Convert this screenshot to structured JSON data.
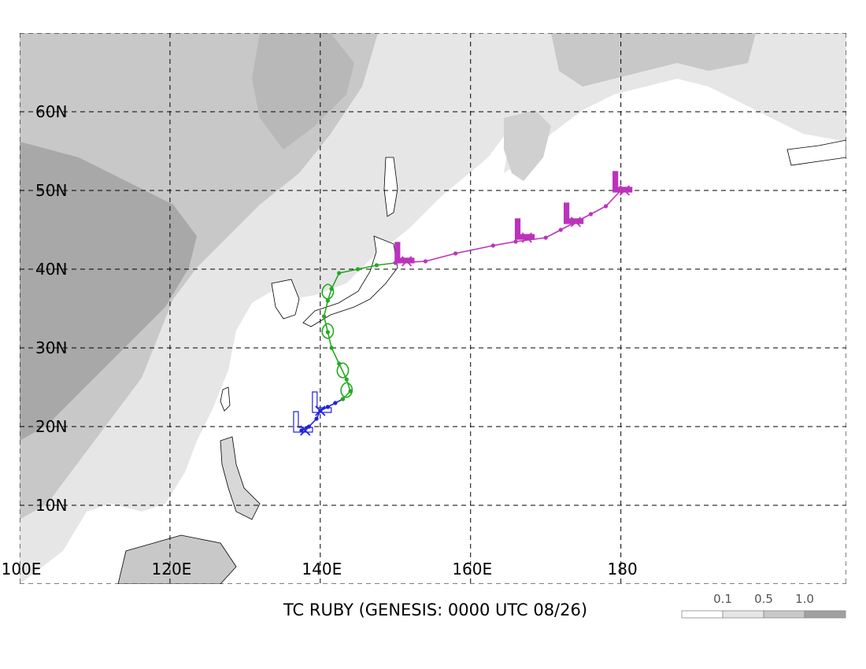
{
  "title": "TC RUBY (GENESIS: 0000 UTC 08/26)",
  "map": {
    "lon_min": 100,
    "lon_max": 210,
    "lat_min": 0,
    "lat_max": 70,
    "gridlines": true,
    "lon_labels": [
      {
        "lon": 100,
        "text": "100E"
      },
      {
        "lon": 120,
        "text": "120E"
      },
      {
        "lon": 140,
        "text": "140E"
      },
      {
        "lon": 160,
        "text": "160E"
      },
      {
        "lon": 180,
        "text": "180"
      }
    ],
    "lat_labels": [
      {
        "lat": 10,
        "text": "10N"
      },
      {
        "lat": 20,
        "text": "20N"
      },
      {
        "lat": 30,
        "text": "30N"
      },
      {
        "lat": 40,
        "text": "40N"
      },
      {
        "lat": 50,
        "text": "50N"
      },
      {
        "lat": 60,
        "text": "60N"
      }
    ]
  },
  "legend": {
    "labels": [
      "0.1",
      "0.5",
      "1.0"
    ],
    "colors": [
      "#ffffff",
      "#e6e6e6",
      "#c8c8c8",
      "#a0a0a0"
    ]
  },
  "tracks": [
    {
      "color": "#2222dd",
      "points": [
        [
          137.5,
          19.5
        ],
        [
          138.5,
          20.0
        ],
        [
          139.5,
          21.0
        ],
        [
          140.0,
          22.0
        ],
        [
          141.0,
          22.5
        ],
        [
          142.0,
          23.0
        ],
        [
          143.0,
          23.5
        ]
      ]
    },
    {
      "color": "#22aa22",
      "points": [
        [
          143.0,
          23.5
        ],
        [
          144.0,
          24.5
        ],
        [
          143.5,
          26.0
        ],
        [
          142.5,
          28.0
        ],
        [
          141.5,
          30.0
        ],
        [
          141.0,
          32.0
        ],
        [
          140.5,
          34.0
        ],
        [
          141.0,
          36.0
        ],
        [
          141.5,
          37.5
        ],
        [
          142.5,
          39.5
        ],
        [
          145.0,
          40.0
        ],
        [
          147.5,
          40.5
        ],
        [
          150.0,
          40.8
        ]
      ]
    },
    {
      "color": "#bb33bb",
      "points": [
        [
          150.0,
          40.8
        ],
        [
          154.0,
          41.0
        ],
        [
          158.0,
          42.0
        ],
        [
          163.0,
          43.0
        ],
        [
          166.0,
          43.5
        ],
        [
          170.0,
          44.0
        ],
        [
          172.0,
          45.0
        ],
        [
          174.0,
          46.0
        ],
        [
          176.0,
          47.0
        ],
        [
          178.0,
          48.0
        ],
        [
          180.0,
          50.0
        ]
      ]
    }
  ],
  "lows": [
    {
      "lon": 137.5,
      "lat": 19.5,
      "color": "#2222dd"
    },
    {
      "lon": 140.0,
      "lat": 22.0,
      "color": "#2222dd"
    },
    {
      "lon": 151.0,
      "lat": 41.0,
      "color": "#bb33bb"
    },
    {
      "lon": 167.0,
      "lat": 44.0,
      "color": "#bb33bb"
    },
    {
      "lon": 173.5,
      "lat": 46.0,
      "color": "#bb33bb"
    },
    {
      "lon": 180.0,
      "lat": 50.0,
      "color": "#bb33bb"
    }
  ],
  "x_markers": [
    {
      "lon": 138.0,
      "lat": 19.5,
      "color": "#2222dd"
    },
    {
      "lon": 140.0,
      "lat": 22.0,
      "color": "#2222dd"
    },
    {
      "lon": 151.5,
      "lat": 41.0,
      "color": "#bb33bb"
    },
    {
      "lon": 167.5,
      "lat": 44.0,
      "color": "#bb33bb"
    },
    {
      "lon": 174.0,
      "lat": 46.0,
      "color": "#bb33bb"
    },
    {
      "lon": 180.5,
      "lat": 50.0,
      "color": "#bb33bb"
    }
  ],
  "cyclone_symbols": [
    {
      "lon": 143.5,
      "lat": 24.5,
      "color": "#22aa22"
    },
    {
      "lon": 143.0,
      "lat": 27.0,
      "color": "#22aa22"
    },
    {
      "lon": 141.0,
      "lat": 32.0,
      "color": "#22aa22"
    },
    {
      "lon": 141.0,
      "lat": 37.0,
      "color": "#22aa22"
    }
  ]
}
